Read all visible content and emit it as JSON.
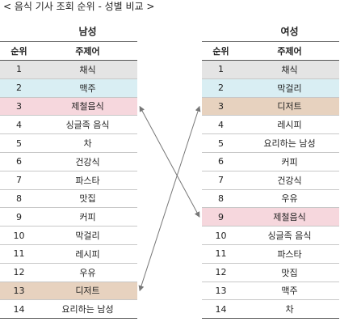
{
  "title": "< 음식 기사 조회 순위 - 성별 비교 >",
  "colors": {
    "gray": "#e4e4e4",
    "blue": "#d9eef3",
    "pink": "#f6d7dd",
    "tan": "#e7d2bf",
    "arrow": "#777777"
  },
  "columns": {
    "rank": "순위",
    "topic": "주제어"
  },
  "male": {
    "heading": "남성",
    "rows": [
      {
        "rank": "1",
        "topic": "채식",
        "hl": "gray"
      },
      {
        "rank": "2",
        "topic": "맥주",
        "hl": "blue"
      },
      {
        "rank": "3",
        "topic": "제철음식",
        "hl": "pink"
      },
      {
        "rank": "4",
        "topic": "싱글족 음식",
        "hl": ""
      },
      {
        "rank": "5",
        "topic": "차",
        "hl": ""
      },
      {
        "rank": "6",
        "topic": "건강식",
        "hl": ""
      },
      {
        "rank": "7",
        "topic": "파스타",
        "hl": ""
      },
      {
        "rank": "8",
        "topic": "맛집",
        "hl": ""
      },
      {
        "rank": "9",
        "topic": "커피",
        "hl": ""
      },
      {
        "rank": "10",
        "topic": "막걸리",
        "hl": ""
      },
      {
        "rank": "11",
        "topic": "레시피",
        "hl": ""
      },
      {
        "rank": "12",
        "topic": "우유",
        "hl": ""
      },
      {
        "rank": "13",
        "topic": "디저트",
        "hl": "tan"
      },
      {
        "rank": "14",
        "topic": "요리하는 남성",
        "hl": ""
      }
    ]
  },
  "female": {
    "heading": "여성",
    "rows": [
      {
        "rank": "1",
        "topic": "채식",
        "hl": "gray"
      },
      {
        "rank": "2",
        "topic": "막걸리",
        "hl": "blue"
      },
      {
        "rank": "3",
        "topic": "디저트",
        "hl": "tan"
      },
      {
        "rank": "4",
        "topic": "레시피",
        "hl": ""
      },
      {
        "rank": "5",
        "topic": "요리하는 남성",
        "hl": ""
      },
      {
        "rank": "6",
        "topic": "커피",
        "hl": ""
      },
      {
        "rank": "7",
        "topic": "건강식",
        "hl": ""
      },
      {
        "rank": "8",
        "topic": "우유",
        "hl": ""
      },
      {
        "rank": "9",
        "topic": "제철음식",
        "hl": "pink"
      },
      {
        "rank": "10",
        "topic": "싱글족 음식",
        "hl": ""
      },
      {
        "rank": "11",
        "topic": "파스타",
        "hl": ""
      },
      {
        "rank": "12",
        "topic": "맛집",
        "hl": ""
      },
      {
        "rank": "13",
        "topic": "맥주",
        "hl": ""
      },
      {
        "rank": "14",
        "topic": "차",
        "hl": ""
      }
    ]
  },
  "arrows": [
    {
      "from": "male",
      "from_rank": "3",
      "to": "female",
      "to_rank": "9"
    },
    {
      "from": "male",
      "from_rank": "13",
      "to": "female",
      "to_rank": "3"
    }
  ]
}
